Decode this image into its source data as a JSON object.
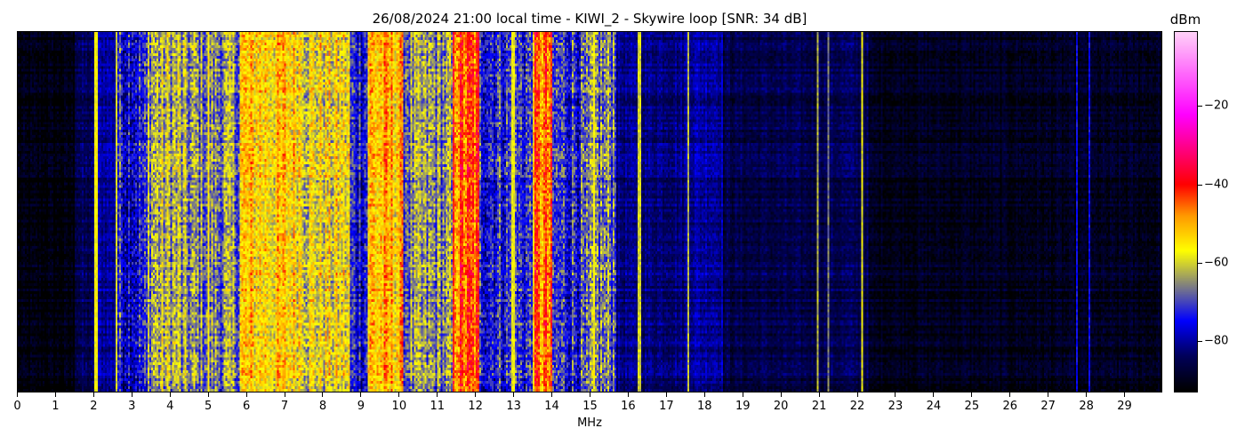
{
  "chart_data": {
    "type": "heatmap",
    "title": "26/08/2024 21:00 local time - KIWI_2 - Skywire loop [SNR: 34 dB]",
    "xlabel": "MHz",
    "ylabel": "",
    "xlim": [
      0,
      30
    ],
    "xticks": [
      "0",
      "1",
      "2",
      "3",
      "4",
      "5",
      "6",
      "7",
      "8",
      "9",
      "10",
      "11",
      "12",
      "13",
      "14",
      "15",
      "16",
      "17",
      "18",
      "19",
      "20",
      "21",
      "22",
      "23",
      "24",
      "25",
      "26",
      "27",
      "28",
      "29"
    ],
    "colorbar": {
      "label": "dBm",
      "range": [
        -93,
        -1
      ],
      "ticks": [
        "-20",
        "-40",
        "-60",
        "-80"
      ],
      "tick_values": [
        -20,
        -40,
        -60,
        -80
      ],
      "colormap": [
        {
          "value": -93,
          "color": "#000000"
        },
        {
          "value": -84,
          "color": "#00005a"
        },
        {
          "value": -75,
          "color": "#0000ff"
        },
        {
          "value": -66,
          "color": "#808080"
        },
        {
          "value": -57,
          "color": "#ffff00"
        },
        {
          "value": -48,
          "color": "#ff9900"
        },
        {
          "value": -40,
          "color": "#ff0000"
        },
        {
          "value": -22,
          "color": "#ff00ff"
        },
        {
          "value": -1,
          "color": "#ffd0f8"
        }
      ]
    },
    "band_levels_dBm": [
      {
        "from": 0,
        "to": 1.5,
        "level": -92
      },
      {
        "from": 1.5,
        "to": 2.0,
        "level": -85
      },
      {
        "from": 2.0,
        "to": 2.6,
        "level": -80
      },
      {
        "from": 2.6,
        "to": 3.4,
        "level": -74
      },
      {
        "from": 3.4,
        "to": 4.3,
        "level": -63
      },
      {
        "from": 4.3,
        "to": 5.8,
        "level": -66
      },
      {
        "from": 5.8,
        "to": 7.5,
        "level": -54
      },
      {
        "from": 7.5,
        "to": 8.7,
        "level": -58
      },
      {
        "from": 8.7,
        "to": 9.2,
        "level": -73
      },
      {
        "from": 9.2,
        "to": 10.1,
        "level": -52
      },
      {
        "from": 10.1,
        "to": 11.4,
        "level": -66
      },
      {
        "from": 11.4,
        "to": 12.1,
        "level": -45
      },
      {
        "from": 12.1,
        "to": 13.5,
        "level": -72
      },
      {
        "from": 13.5,
        "to": 14.0,
        "level": -47
      },
      {
        "from": 14.0,
        "to": 15.0,
        "level": -72
      },
      {
        "from": 15.0,
        "to": 15.7,
        "level": -67
      },
      {
        "from": 15.7,
        "to": 17.5,
        "level": -82
      },
      {
        "from": 17.5,
        "to": 18.5,
        "level": -80
      },
      {
        "from": 18.5,
        "to": 21.0,
        "level": -86
      },
      {
        "from": 21.0,
        "to": 22.3,
        "level": -85
      },
      {
        "from": 22.3,
        "to": 30,
        "level": -90
      }
    ],
    "carrier_lines_MHz": [
      {
        "f": 2.05,
        "level": -57
      },
      {
        "f": 2.6,
        "level": -60
      },
      {
        "f": 5.0,
        "level": -55
      },
      {
        "f": 13.0,
        "level": -58
      },
      {
        "f": 15.1,
        "level": -58
      },
      {
        "f": 16.3,
        "level": -60
      },
      {
        "f": 17.6,
        "level": -62
      },
      {
        "f": 21.0,
        "level": -62
      },
      {
        "f": 21.25,
        "level": -66
      },
      {
        "f": 22.15,
        "level": -58
      },
      {
        "f": 27.8,
        "level": -75
      },
      {
        "f": 28.1,
        "level": -75
      }
    ]
  }
}
